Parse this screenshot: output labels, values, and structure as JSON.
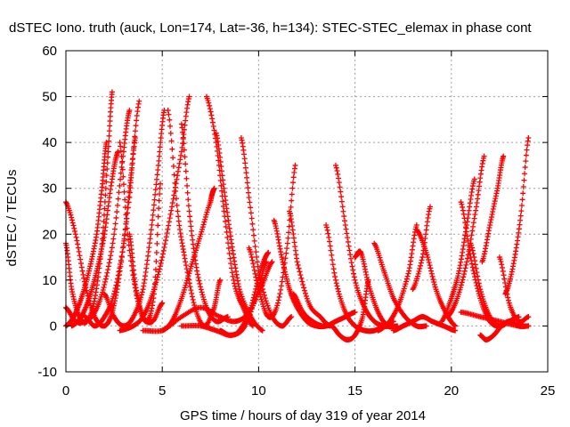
{
  "chart_data": {
    "type": "scatter",
    "title": "dSTEC Iono. truth (auck, Lon=174, Lat=-36, h=134): STEC-STEC_elemax in phase cont",
    "xlabel": "GPS time / hours of day 319 of year 2014",
    "ylabel": "dSTEC  / TECUs",
    "xlim": [
      0,
      25
    ],
    "ylim": [
      -10,
      60
    ],
    "xticks": [
      0,
      5,
      10,
      15,
      20,
      25
    ],
    "yticks": [
      -10,
      0,
      10,
      20,
      30,
      40,
      50,
      60
    ],
    "grid": true,
    "legend": "none",
    "marker": "plus",
    "color": "#ff0000",
    "series": [
      {
        "x": [
          0.0,
          0.5,
          1.0,
          1.5,
          2.0,
          2.4,
          2.8,
          3.3,
          3.6
        ],
        "y": [
          27,
          20,
          9,
          2,
          0,
          3,
          12,
          28,
          41
        ]
      },
      {
        "x": [
          0.0,
          0.3,
          0.7,
          1.1,
          1.5,
          1.9,
          2.2,
          2.4
        ],
        "y": [
          18,
          8,
          2,
          1,
          6,
          19,
          38,
          51
        ]
      },
      {
        "x": [
          0.0,
          0.5,
          1.0,
          1.5,
          2.0,
          2.5,
          3.0,
          3.3
        ],
        "y": [
          4,
          1,
          1,
          3,
          9,
          20,
          38,
          47
        ]
      },
      {
        "x": [
          0.0,
          0.4,
          0.8,
          1.2,
          1.6,
          1.9,
          2.1
        ],
        "y": [
          0,
          2,
          6,
          12,
          20,
          31,
          40
        ]
      },
      {
        "x": [
          0.3,
          0.8,
          1.2,
          1.6,
          2.0,
          2.4,
          2.7
        ],
        "y": [
          0,
          2,
          6,
          12,
          20,
          32,
          38
        ]
      },
      {
        "x": [
          1.0,
          1.5,
          2.0,
          2.5,
          3.0,
          3.4,
          3.8
        ],
        "y": [
          2,
          0,
          2,
          7,
          18,
          34,
          49
        ]
      },
      {
        "x": [
          2.0,
          2.5,
          3.0,
          3.5,
          4.0,
          4.4,
          4.8,
          5.1
        ],
        "y": [
          7,
          2,
          0,
          2,
          8,
          20,
          35,
          47
        ]
      },
      {
        "x": [
          2.8,
          3.2,
          3.7,
          4.2,
          4.6,
          4.9
        ],
        "y": [
          40,
          20,
          6,
          1,
          8,
          31
        ]
      },
      {
        "x": [
          3.3,
          3.6,
          4.0,
          4.5,
          5.0
        ],
        "y": [
          20,
          9,
          2,
          1,
          5
        ]
      },
      {
        "x": [
          2.8,
          3.5,
          4.0,
          4.5,
          5.0,
          5.5,
          6.0,
          6.4
        ],
        "y": [
          -1,
          0,
          2,
          7,
          15,
          26,
          38,
          50
        ]
      },
      {
        "x": [
          4.0,
          5.0,
          5.5,
          6.0,
          6.5,
          7.0,
          7.5,
          7.7
        ],
        "y": [
          -1,
          -1,
          1,
          6,
          13,
          20,
          27,
          30
        ]
      },
      {
        "x": [
          5.3,
          5.8,
          6.2,
          6.7,
          7.2,
          7.7,
          8.0
        ],
        "y": [
          47,
          25,
          14,
          4,
          0,
          4,
          10
        ]
      },
      {
        "x": [
          6.0,
          6.4,
          6.8,
          7.3,
          7.8,
          8.4
        ],
        "y": [
          44,
          25,
          12,
          4,
          1,
          2
        ]
      },
      {
        "x": [
          5.0,
          6.0,
          7.0,
          8.0,
          8.8,
          9.5,
          10.2,
          10.7
        ],
        "y": [
          -1,
          2,
          4,
          2,
          1,
          3,
          9,
          14
        ]
      },
      {
        "x": [
          7.3,
          7.8,
          8.2,
          8.7,
          9.2,
          9.7
        ],
        "y": [
          50,
          40,
          25,
          10,
          4,
          0
        ]
      },
      {
        "x": [
          7.8,
          8.2,
          8.6,
          9.0,
          9.6,
          10.2
        ],
        "y": [
          42,
          30,
          18,
          8,
          2,
          -1
        ]
      },
      {
        "x": [
          6.0,
          7.0,
          7.8,
          8.6,
          9.3,
          10.0,
          10.4
        ],
        "y": [
          0,
          0,
          -1,
          -2,
          0,
          8,
          14
        ]
      },
      {
        "x": [
          8.0,
          8.5,
          9.0,
          9.6,
          10.1,
          10.5
        ],
        "y": [
          -1,
          -2,
          -1,
          4,
          12,
          16
        ]
      },
      {
        "x": [
          9.1,
          9.5,
          10.0,
          10.6,
          11.2,
          11.7
        ],
        "y": [
          41,
          28,
          12,
          3,
          0,
          2
        ]
      },
      {
        "x": [
          9.5,
          10.0,
          10.5,
          11.0,
          11.5,
          11.9
        ],
        "y": [
          17,
          8,
          2,
          5,
          18,
          35
        ]
      },
      {
        "x": [
          10.8,
          11.2,
          11.6,
          12.0,
          12.5,
          13.0,
          13.5,
          14.0,
          14.5,
          15.0
        ],
        "y": [
          23,
          15,
          8,
          4,
          1,
          0,
          0,
          1,
          2,
          3
        ]
      },
      {
        "x": [
          11.6,
          12.0,
          12.6,
          13.2,
          13.7
        ],
        "y": [
          25,
          14,
          5,
          2,
          0
        ]
      },
      {
        "x": [
          11.8,
          12.3,
          12.8,
          13.3,
          13.8,
          14.2,
          14.6,
          15.0,
          15.4,
          15.7
        ],
        "y": [
          7,
          3,
          1,
          0,
          0,
          -2,
          -3,
          -2,
          2,
          10
        ]
      },
      {
        "x": [
          13.5,
          14.0,
          14.5,
          15.0,
          15.5,
          16.0,
          16.5,
          17.0
        ],
        "y": [
          22,
          10,
          3,
          0,
          -1,
          -1,
          0,
          1
        ]
      },
      {
        "x": [
          14.0,
          14.5,
          15.0,
          15.5,
          16.0,
          16.5,
          16.8
        ],
        "y": [
          35,
          22,
          10,
          4,
          1,
          0,
          0
        ]
      },
      {
        "x": [
          15.0,
          15.3,
          15.7,
          16.2,
          16.7,
          17.2
        ],
        "y": [
          15,
          16,
          9,
          3,
          0,
          0
        ]
      },
      {
        "x": [
          16.0,
          16.5,
          17.0,
          17.6,
          18.2,
          18.7
        ],
        "y": [
          18,
          12,
          6,
          2,
          0,
          0
        ]
      },
      {
        "x": [
          16.2,
          16.8,
          17.3,
          17.8,
          18.2
        ],
        "y": [
          -1,
          1,
          5,
          12,
          22
        ]
      },
      {
        "x": [
          17.0,
          17.5,
          18.0,
          18.5,
          19.0,
          19.6,
          20.2
        ],
        "y": [
          -1,
          0,
          1,
          2,
          1,
          0,
          -1
        ]
      },
      {
        "x": [
          18.2,
          18.7,
          19.2,
          19.7,
          20.2
        ],
        "y": [
          21,
          16,
          8,
          3,
          0
        ]
      },
      {
        "x": [
          18.0,
          18.5,
          18.9
        ],
        "y": [
          8,
          15,
          26
        ]
      },
      {
        "x": [
          19.5,
          20.0,
          20.4,
          20.8,
          21.2
        ],
        "y": [
          1,
          6,
          12,
          22,
          32
        ]
      },
      {
        "x": [
          19.8,
          20.3,
          20.8,
          21.3,
          21.7
        ],
        "y": [
          2,
          6,
          14,
          26,
          37
        ]
      },
      {
        "x": [
          20.5,
          21.0,
          21.5,
          22.0,
          22.5,
          23.0
        ],
        "y": [
          27,
          15,
          6,
          1,
          0,
          1
        ]
      },
      {
        "x": [
          21.0,
          21.5,
          22.0,
          22.5,
          23.0,
          23.5
        ],
        "y": [
          18,
          8,
          2,
          0,
          1,
          2
        ]
      },
      {
        "x": [
          21.5,
          21.8,
          22.2,
          22.6,
          23.0,
          23.5,
          24.0
        ],
        "y": [
          -2,
          -3,
          -2,
          0,
          1,
          0,
          0
        ]
      },
      {
        "x": [
          21.6,
          22.0,
          22.4,
          22.7
        ],
        "y": [
          14,
          22,
          30,
          37
        ]
      },
      {
        "x": [
          22.8,
          23.2,
          23.6,
          24.0
        ],
        "y": [
          7,
          13,
          24,
          41
        ]
      },
      {
        "x": [
          22.5,
          23.0,
          23.5,
          24.0
        ],
        "y": [
          15,
          5,
          1,
          2
        ]
      },
      {
        "x": [
          20.5,
          21.5,
          22.5,
          23.5,
          24.0
        ],
        "y": [
          3,
          2,
          1,
          0,
          0
        ]
      }
    ]
  }
}
